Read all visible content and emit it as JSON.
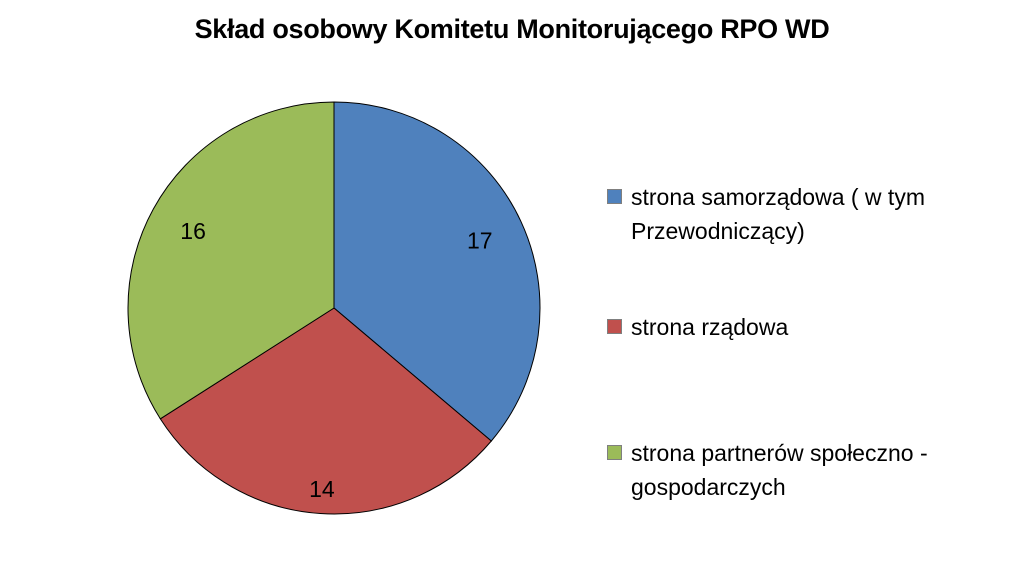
{
  "chart_data": {
    "type": "pie",
    "title": "Skład osobowy Komitetu Monitorującego RPO WD",
    "slices": [
      {
        "label": "strona samorządowa ( w tym Przewodniczący)",
        "value": 17,
        "color": "#4f81bd"
      },
      {
        "label": "strona rządowa",
        "value": 14,
        "color": "#c0504d"
      },
      {
        "label": "strona partnerów społeczno - gospodarczych",
        "value": 16,
        "color": "#9bbb59"
      }
    ],
    "legend_position": "right",
    "start_angle": "12 o'clock",
    "direction": "clockwise",
    "data_labels": true
  }
}
